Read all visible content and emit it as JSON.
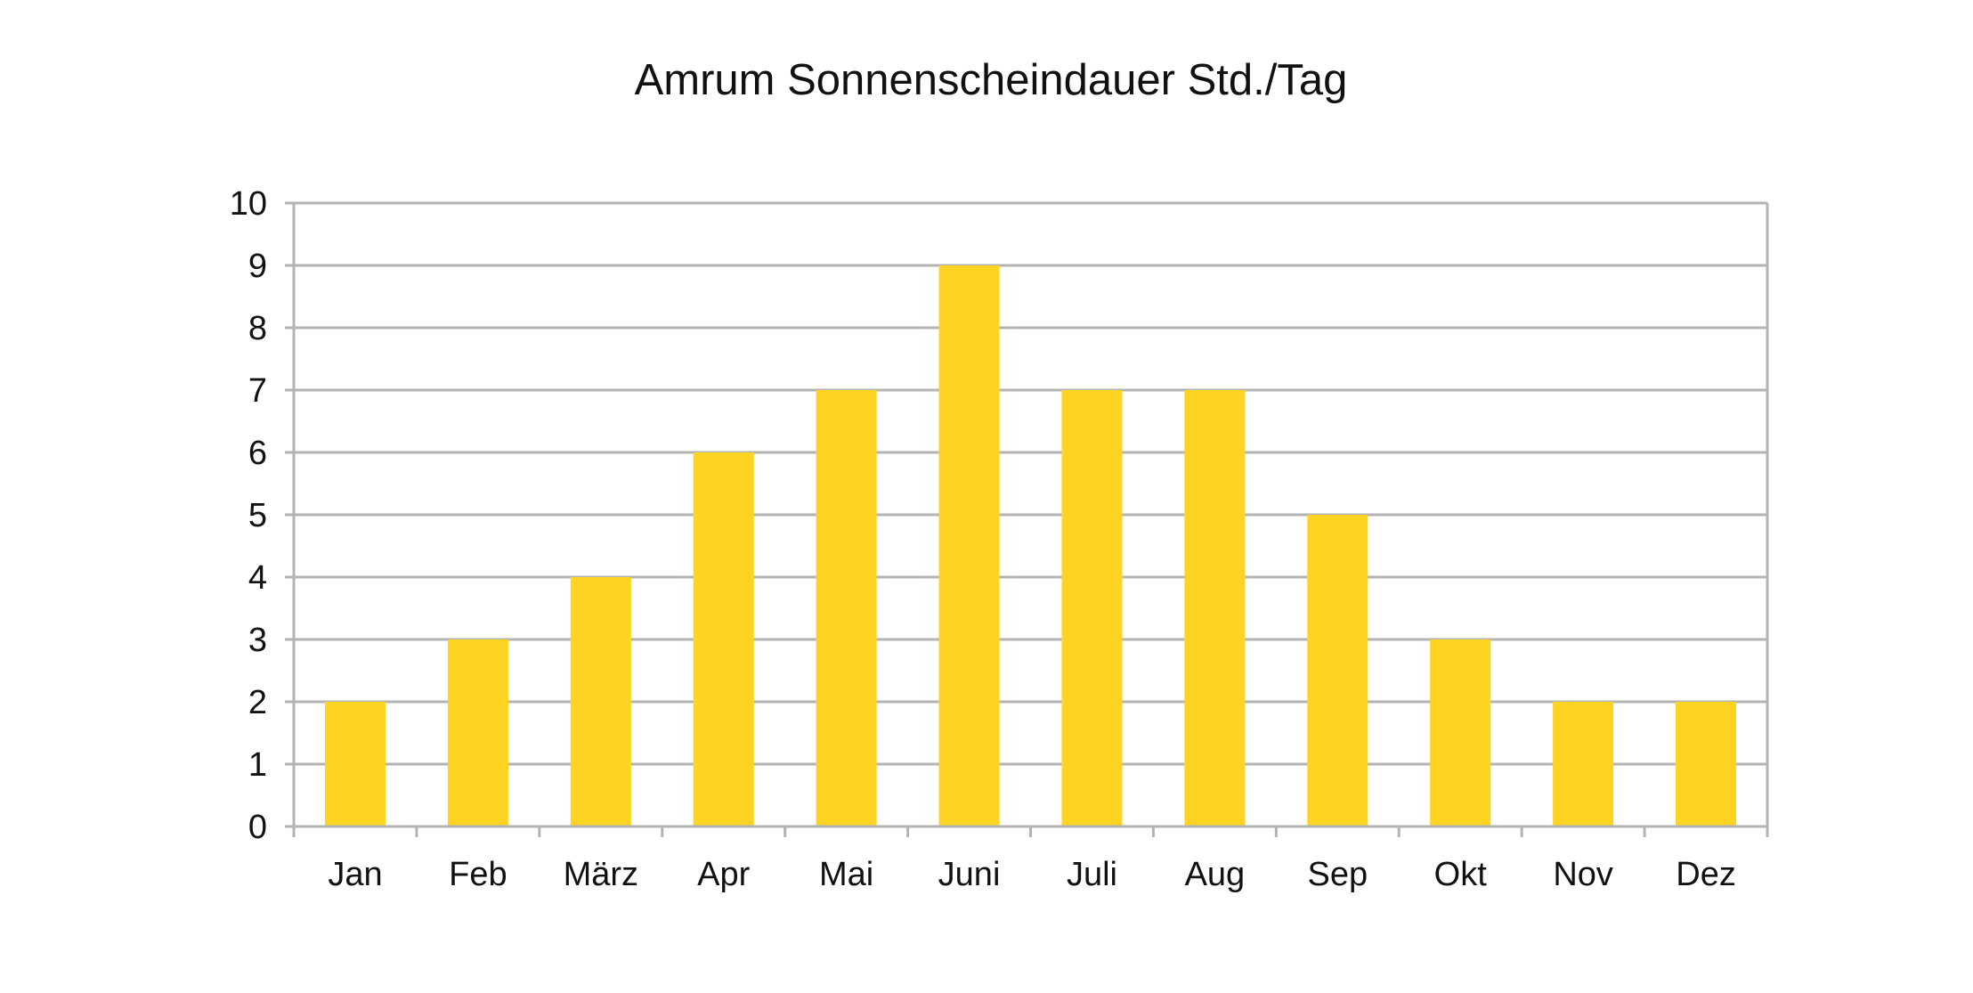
{
  "chart_data": {
    "type": "bar",
    "title": "Amrum Sonnenscheindauer Std./Tag",
    "xlabel": "",
    "ylabel": "",
    "categories": [
      "Jan",
      "Feb",
      "März",
      "Apr",
      "Mai",
      "Juni",
      "Juli",
      "Aug",
      "Sep",
      "Okt",
      "Nov",
      "Dez"
    ],
    "values": [
      2,
      3,
      4,
      6,
      7,
      9,
      7,
      7,
      5,
      3,
      2,
      2
    ],
    "ylim": [
      0,
      10
    ],
    "yticks": [
      "0",
      "1",
      "2",
      "3",
      "4",
      "5",
      "6",
      "7",
      "8",
      "9",
      "10"
    ],
    "grid": true,
    "legend": "none",
    "bar_color": "#fed322",
    "grid_color": "#b3b3b3"
  }
}
